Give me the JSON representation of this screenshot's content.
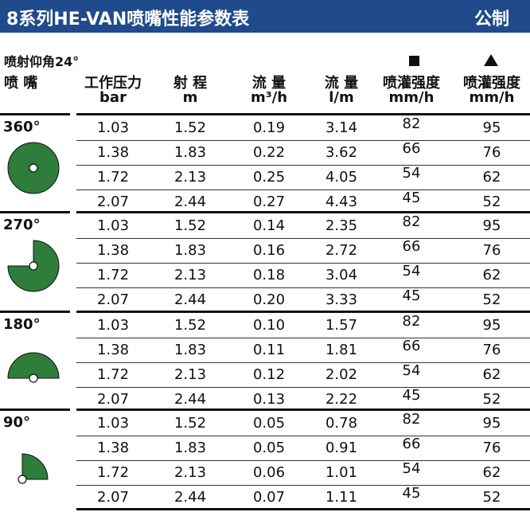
{
  "header": {
    "title": "8系列HE-VAN喷嘴性能参数表",
    "unit_system": "公制"
  },
  "spray_angle_label": "喷射仰角24°",
  "colors": {
    "title_bg": "#1f4a8c",
    "nozzle_fill": "#2e7d3a"
  },
  "markers": {
    "square": "square-marker",
    "triangle": "triangle-marker"
  },
  "columns": [
    {
      "line1": "喷 嘴",
      "line2": ""
    },
    {
      "line1": "工作压力",
      "line2": "bar"
    },
    {
      "line1": "射 程",
      "line2": "m"
    },
    {
      "line1": "流 量",
      "line2": "m³/h"
    },
    {
      "line1": "流 量",
      "line2": "l/m"
    },
    {
      "line1": "喷灌强度",
      "line2": "mm/h"
    },
    {
      "line1": "喷灌强度",
      "line2": "mm/h"
    }
  ],
  "groups": [
    {
      "nozzle": "360°",
      "arc_degrees": 360,
      "rows": [
        [
          "1.03",
          "1.52",
          "0.19",
          "3.14",
          "82",
          "95"
        ],
        [
          "1.38",
          "1.83",
          "0.22",
          "3.62",
          "66",
          "76"
        ],
        [
          "1.72",
          "2.13",
          "0.25",
          "4.05",
          "54",
          "62"
        ],
        [
          "2.07",
          "2.44",
          "0.27",
          "4.43",
          "45",
          "52"
        ]
      ]
    },
    {
      "nozzle": "270°",
      "arc_degrees": 270,
      "rows": [
        [
          "1.03",
          "1.52",
          "0.14",
          "2.35",
          "82",
          "95"
        ],
        [
          "1.38",
          "1.83",
          "0.16",
          "2.72",
          "66",
          "76"
        ],
        [
          "1.72",
          "2.13",
          "0.18",
          "3.04",
          "54",
          "62"
        ],
        [
          "2.07",
          "2.44",
          "0.20",
          "3.33",
          "45",
          "52"
        ]
      ]
    },
    {
      "nozzle": "180°",
      "arc_degrees": 180,
      "rows": [
        [
          "1.03",
          "1.52",
          "0.10",
          "1.57",
          "82",
          "95"
        ],
        [
          "1.38",
          "1.83",
          "0.11",
          "1.81",
          "66",
          "76"
        ],
        [
          "1.72",
          "2.13",
          "0.12",
          "2.02",
          "54",
          "62"
        ],
        [
          "2.07",
          "2.44",
          "0.13",
          "2.22",
          "45",
          "52"
        ]
      ]
    },
    {
      "nozzle": "90°",
      "arc_degrees": 90,
      "rows": [
        [
          "1.03",
          "1.52",
          "0.05",
          "0.78",
          "82",
          "95"
        ],
        [
          "1.38",
          "1.83",
          "0.05",
          "0.91",
          "66",
          "76"
        ],
        [
          "1.72",
          "2.13",
          "0.06",
          "1.01",
          "54",
          "62"
        ],
        [
          "2.07",
          "2.44",
          "0.07",
          "1.11",
          "45",
          "52"
        ]
      ]
    }
  ]
}
